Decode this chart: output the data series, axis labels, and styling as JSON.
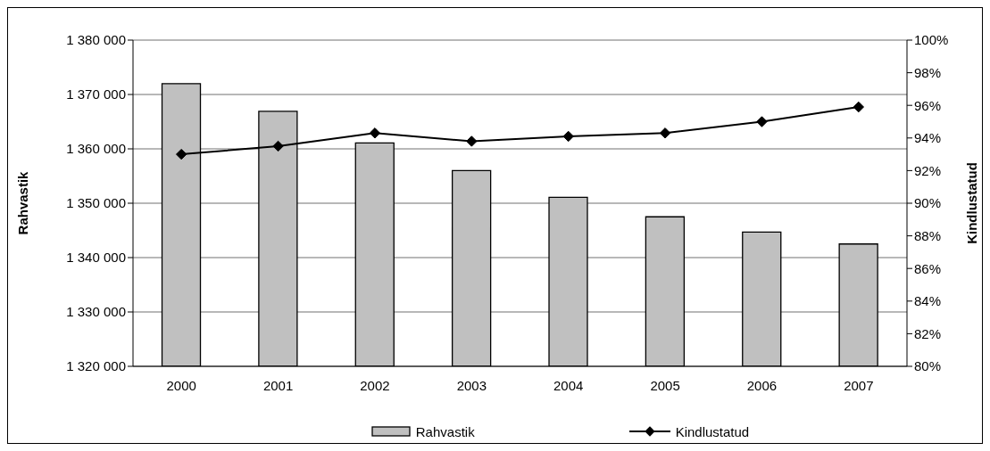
{
  "chart_data": {
    "type": "bar",
    "categories": [
      "2000",
      "2001",
      "2002",
      "2003",
      "2004",
      "2005",
      "2006",
      "2007"
    ],
    "series": [
      {
        "name": "Rahvastik",
        "color": "#c0c0c0",
        "values": [
          1372000,
          1366900,
          1361100,
          1356000,
          1351100,
          1347500,
          1344700,
          1342500
        ]
      },
      {
        "name": "Kindlustatud",
        "type": "line",
        "axis": "y2",
        "color": "#000000",
        "values": [
          93.0,
          93.5,
          94.3,
          93.8,
          94.1,
          94.3,
          95.0,
          95.9
        ]
      }
    ],
    "ylabel": "Rahvastik",
    "y2label": "Kindlustatud",
    "ylim": [
      1320000,
      1380000
    ],
    "yticks": [
      {
        "value": 1320000,
        "label": "1 320 000"
      },
      {
        "value": 1330000,
        "label": "1 330 000"
      },
      {
        "value": 1340000,
        "label": "1 340 000"
      },
      {
        "value": 1350000,
        "label": "1 350 000"
      },
      {
        "value": 1360000,
        "label": "1 360 000"
      },
      {
        "value": 1370000,
        "label": "1 370 000"
      },
      {
        "value": 1380000,
        "label": "1 380 000"
      }
    ],
    "y2lim": [
      80,
      100
    ],
    "y2ticks": [
      {
        "value": 80,
        "label": "80%"
      },
      {
        "value": 82,
        "label": "82%"
      },
      {
        "value": 84,
        "label": "84%"
      },
      {
        "value": 86,
        "label": "86%"
      },
      {
        "value": 88,
        "label": "88%"
      },
      {
        "value": 90,
        "label": "90%"
      },
      {
        "value": 92,
        "label": "92%"
      },
      {
        "value": 94,
        "label": "94%"
      },
      {
        "value": 96,
        "label": "96%"
      },
      {
        "value": 98,
        "label": "98%"
      },
      {
        "value": 100,
        "label": "100%"
      }
    ],
    "grid": "y",
    "legend": "bottom",
    "marker": "diamond"
  }
}
